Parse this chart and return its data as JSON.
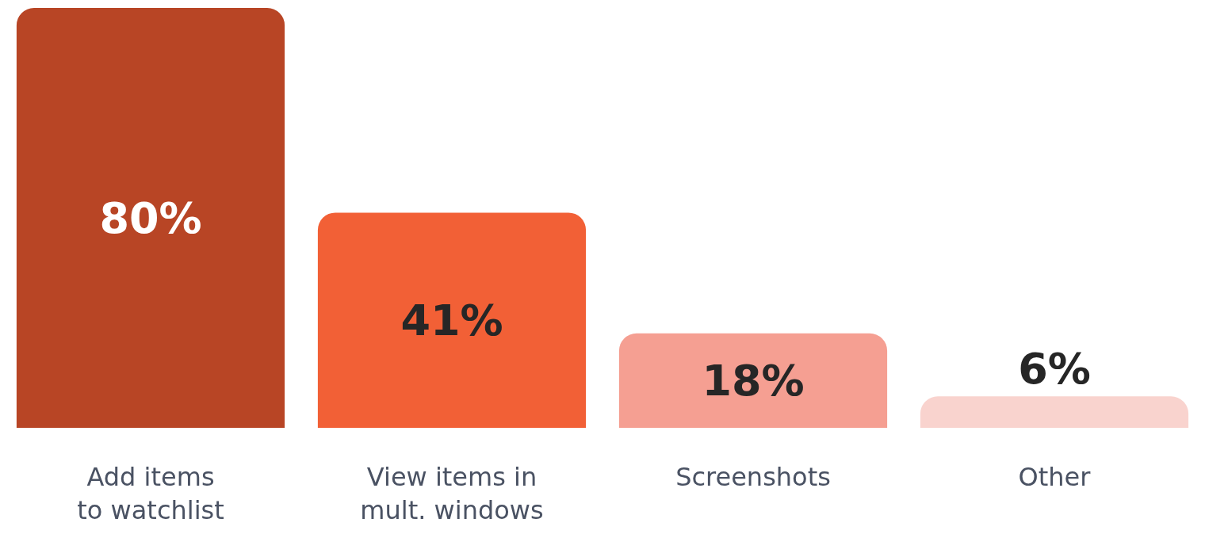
{
  "chart_data": {
    "type": "bar",
    "categories": [
      "Add items to watchlist",
      "View items in mult. windows",
      "Screenshots",
      "Other"
    ],
    "values": [
      80,
      41,
      18,
      6
    ],
    "value_labels": [
      "80%",
      "41%",
      "18%",
      "6%"
    ],
    "colors": [
      "#b84525",
      "#f26036",
      "#f59f92",
      "#f9d3ce"
    ],
    "grid": false
  }
}
